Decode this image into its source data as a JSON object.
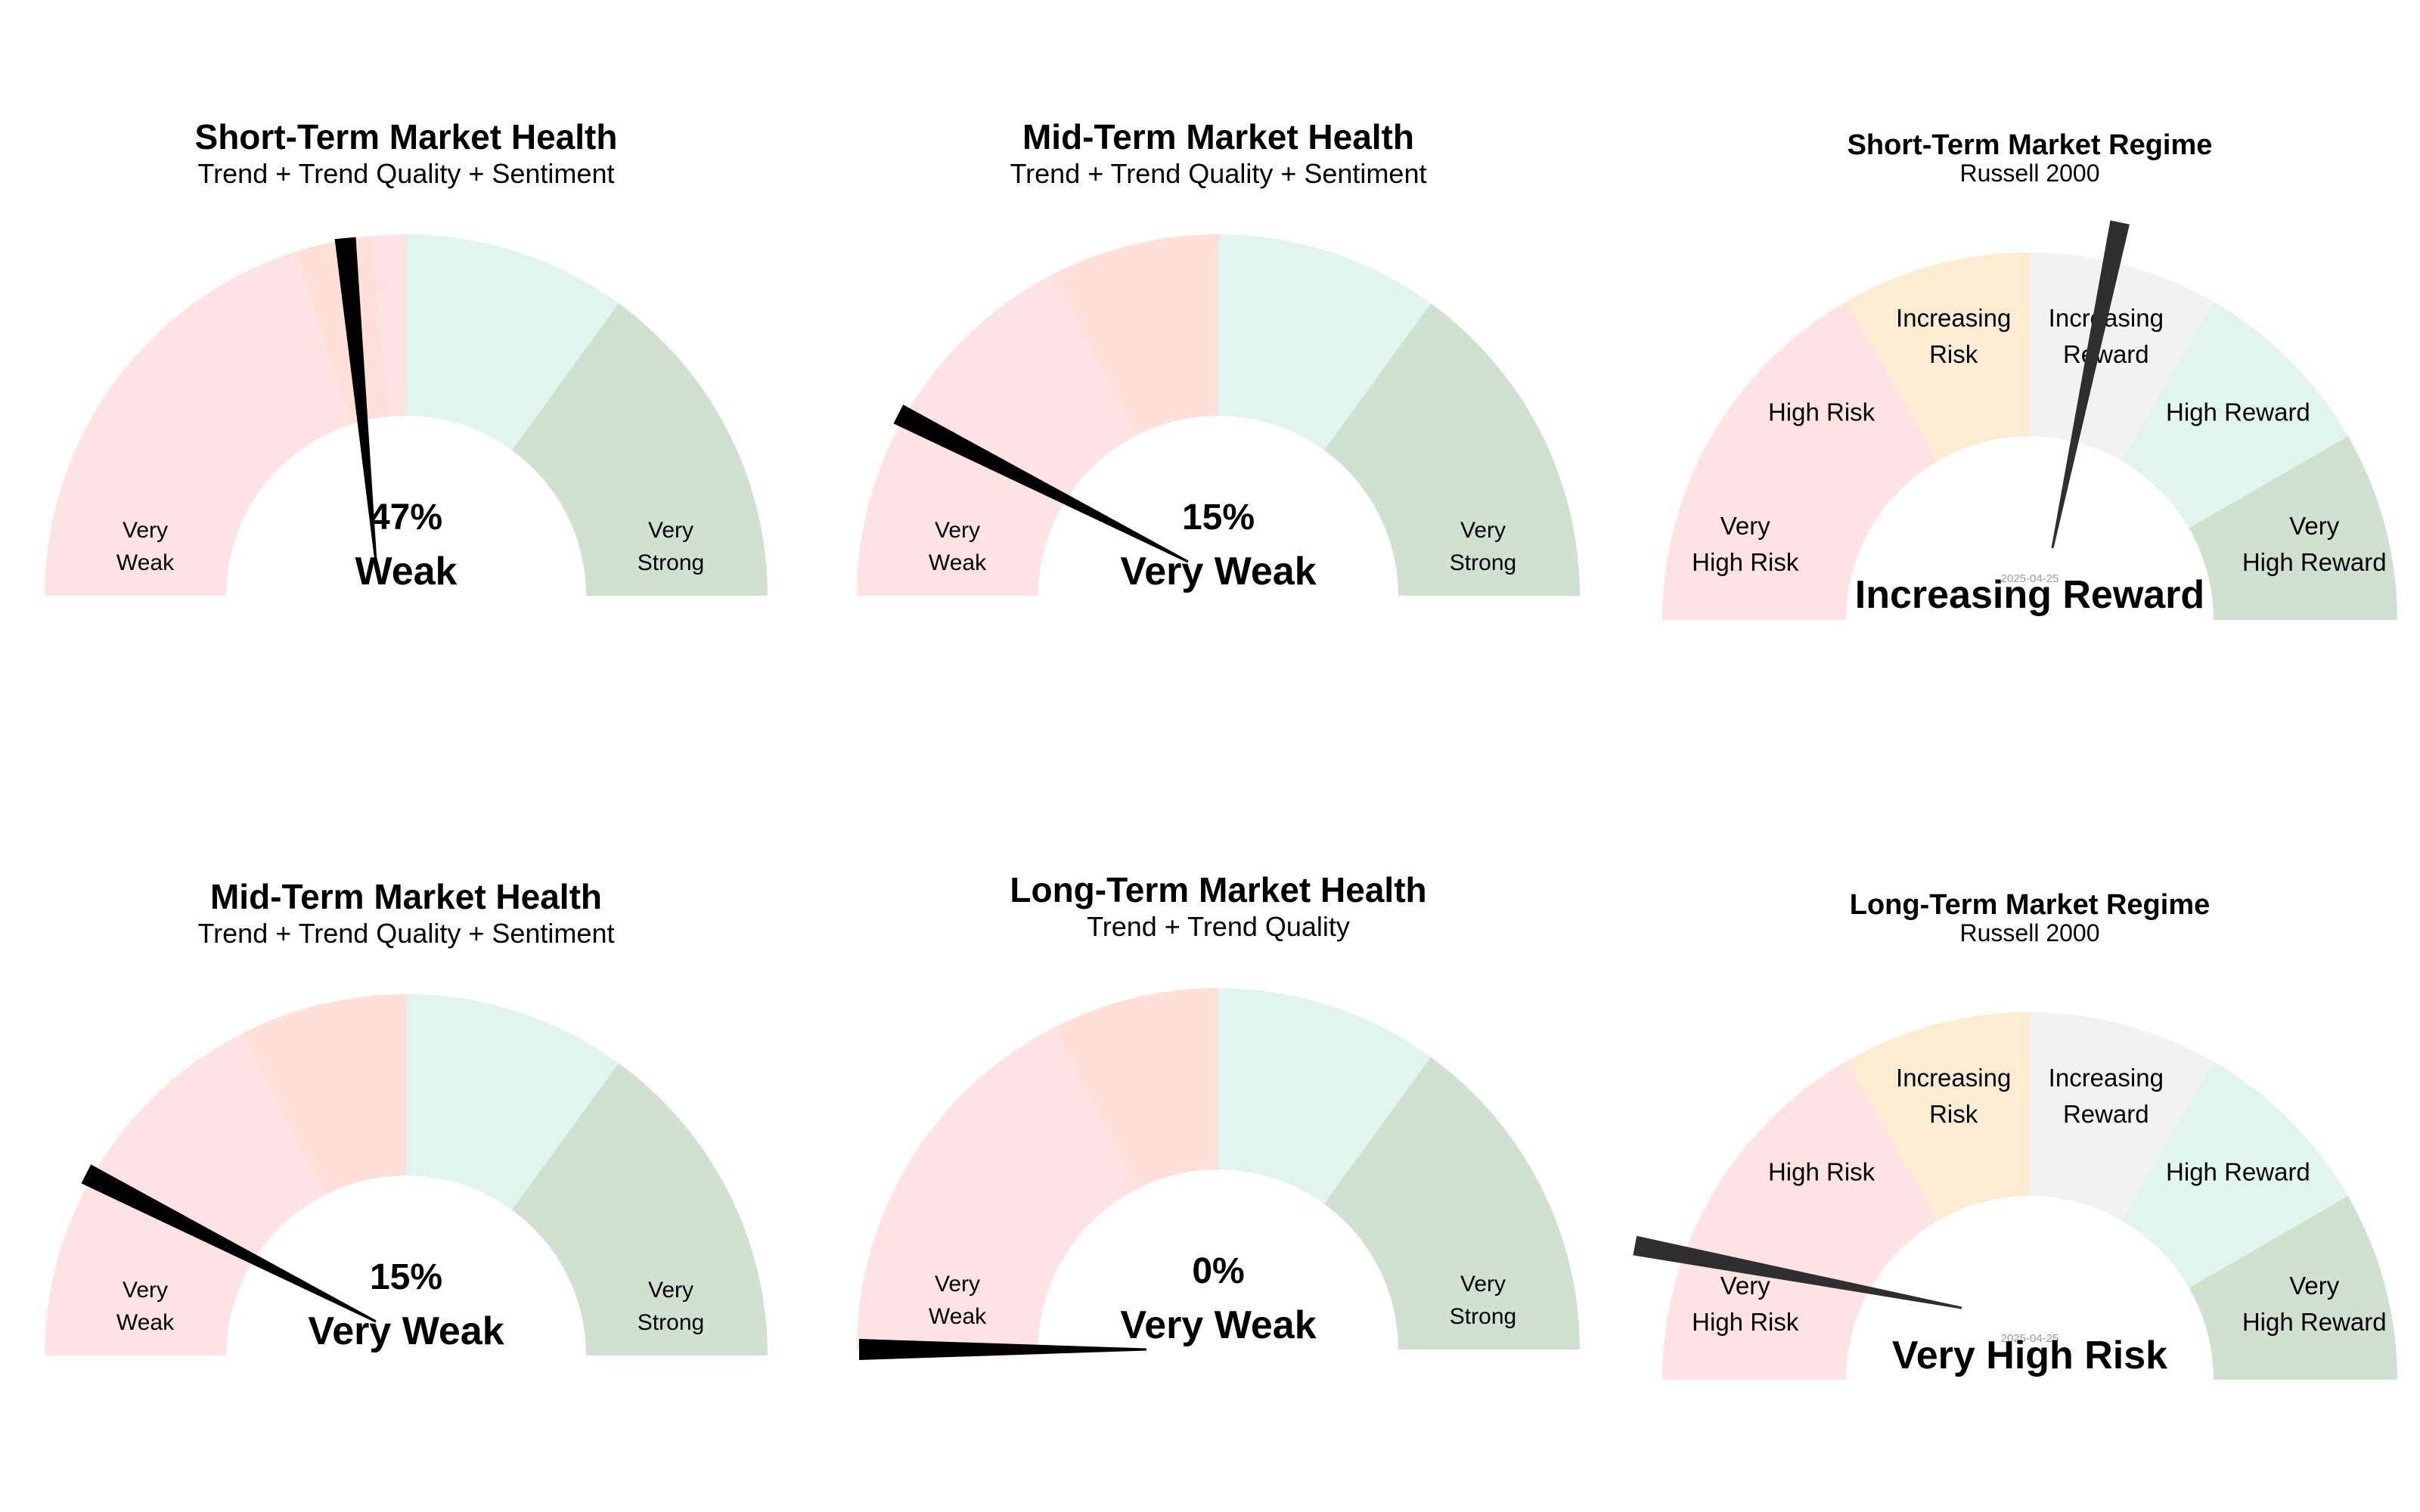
{
  "colors": {
    "needle_health": "#000000",
    "needle_regime": "#2f2f2f",
    "date_text": "#9a9a9a"
  },
  "chart_data": [
    {
      "type": "gauge",
      "gauge_kind": "health",
      "title": "Short-Term Market Health",
      "subtitle": "Trend + Trend Quality + Sentiment",
      "value": 47,
      "value_label": "47%",
      "state_label": "Weak",
      "range": [
        0,
        100
      ],
      "band_labels": [
        [
          "Very",
          "Weak"
        ],
        [
          "Very",
          "Strong"
        ]
      ],
      "band_colors": [
        "#ffe3e3",
        "#ffe3e3",
        "#ffe0d9",
        "#ffe3e3",
        "#e0f5ed",
        "#cfe2cf"
      ],
      "band_bounds": [
        0,
        20,
        40,
        47,
        50,
        70,
        100
      ]
    },
    {
      "type": "gauge",
      "gauge_kind": "health",
      "title": "Mid-Term Market Health",
      "subtitle": "Trend + Trend Quality + Sentiment",
      "value": 15,
      "value_label": "15%",
      "state_label": "Very Weak",
      "range": [
        0,
        100
      ],
      "band_labels": [
        [
          "Very",
          "Weak"
        ],
        [
          "Very",
          "Strong"
        ]
      ],
      "band_colors": [
        "#ffe3e3",
        "#ffe3e3",
        "#ffe0d9",
        "#e0f5ed",
        "#cfe2cf"
      ],
      "band_bounds": [
        0,
        20,
        35,
        50,
        70,
        100
      ]
    },
    {
      "type": "gauge",
      "gauge_kind": "regime",
      "title": "Short-Term Market Regime",
      "subtitle": "Russell 2000",
      "date": "2025-04-25",
      "value": 56.5,
      "state_label": "Increasing Reward",
      "range": [
        0,
        100
      ],
      "segments": [
        {
          "label": [
            "Very",
            "High Risk"
          ],
          "color": "#ffe3e3"
        },
        {
          "label": [
            "High Risk"
          ],
          "color": "#ffe3e3"
        },
        {
          "label": [
            "Increasing",
            "Risk"
          ],
          "color": "#fdecd0"
        },
        {
          "label": [
            "Increasing",
            "Reward"
          ],
          "color": "#f2f2f2"
        },
        {
          "label": [
            "High Reward"
          ],
          "color": "#e0f5ed"
        },
        {
          "label": [
            "Very",
            "High Reward"
          ],
          "color": "#cfe2cf"
        }
      ]
    },
    {
      "type": "gauge",
      "gauge_kind": "health",
      "title": "Mid-Term Market Health",
      "subtitle": "Trend + Trend Quality + Sentiment",
      "value": 15,
      "value_label": "15%",
      "state_label": "Very Weak",
      "range": [
        0,
        100
      ],
      "band_labels": [
        [
          "Very",
          "Weak"
        ],
        [
          "Very",
          "Strong"
        ]
      ],
      "band_colors": [
        "#ffe3e3",
        "#ffe3e3",
        "#ffe0d9",
        "#e0f5ed",
        "#cfe2cf"
      ],
      "band_bounds": [
        0,
        20,
        35,
        50,
        70,
        100
      ]
    },
    {
      "type": "gauge",
      "gauge_kind": "health",
      "title": "Long-Term Market Health",
      "subtitle": "Trend + Trend Quality",
      "value": 0,
      "value_label": "0%",
      "state_label": "Very Weak",
      "range": [
        0,
        100
      ],
      "band_labels": [
        [
          "Very",
          "Weak"
        ],
        [
          "Very",
          "Strong"
        ]
      ],
      "band_colors": [
        "#ffe3e3",
        "#ffe3e3",
        "#ffe0d9",
        "#e0f5ed",
        "#cfe2cf"
      ],
      "band_bounds": [
        0,
        20,
        35,
        50,
        70,
        100
      ]
    },
    {
      "type": "gauge",
      "gauge_kind": "regime",
      "title": "Long-Term Market Regime",
      "subtitle": "Russell 2000",
      "date": "2025-04-25",
      "value": 6,
      "state_label": "Very High Risk",
      "range": [
        0,
        100
      ],
      "segments": [
        {
          "label": [
            "Very",
            "High Risk"
          ],
          "color": "#ffe3e3"
        },
        {
          "label": [
            "High Risk"
          ],
          "color": "#ffe3e3"
        },
        {
          "label": [
            "Increasing",
            "Risk"
          ],
          "color": "#fdecd0"
        },
        {
          "label": [
            "Increasing",
            "Reward"
          ],
          "color": "#f2f2f2"
        },
        {
          "label": [
            "High Reward"
          ],
          "color": "#e0f5ed"
        },
        {
          "label": [
            "Very",
            "High Reward"
          ],
          "color": "#cfe2cf"
        }
      ]
    }
  ]
}
